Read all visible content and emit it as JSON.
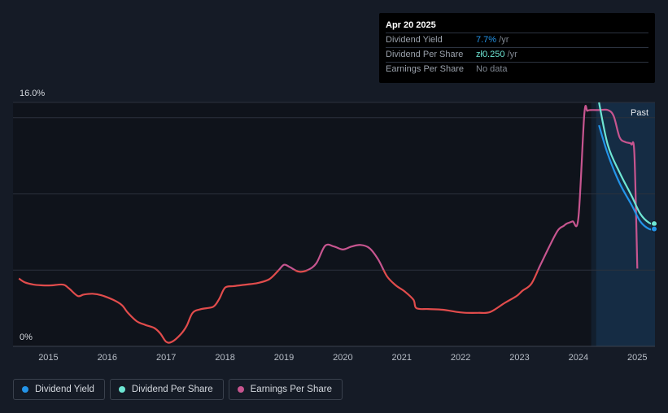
{
  "tooltip": {
    "date": "Apr 20 2025",
    "rows": [
      {
        "label": "Dividend Yield",
        "value": "7.7%",
        "unit": " /yr",
        "color": "#2394e8"
      },
      {
        "label": "Dividend Per Share",
        "value": "zł0.250",
        "unit": " /yr",
        "color": "#6ee6d4"
      },
      {
        "label": "Earnings Per Share",
        "value": "No data",
        "unit": "",
        "color": "#7f8690"
      }
    ]
  },
  "legend": [
    {
      "label": "Dividend Yield",
      "color": "#2394e8"
    },
    {
      "label": "Dividend Per Share",
      "color": "#6ee6d4"
    },
    {
      "label": "Earnings Per Share",
      "color": "#c7558f"
    }
  ],
  "chart_data": {
    "type": "line",
    "y_tick_labels": [
      "16.0%",
      "0%"
    ],
    "ylim": [
      0,
      16
    ],
    "xlim": [
      2014.4,
      2025.3
    ],
    "x_ticks": [
      2015,
      2016,
      2017,
      2018,
      2019,
      2020,
      2021,
      2022,
      2023,
      2024,
      2025
    ],
    "grid": true,
    "past_region": {
      "label": "Past",
      "start": 2024.3
    },
    "series": [
      {
        "name": "Earnings Per Share",
        "color": "#c7558f",
        "segment_colors": {
          "below": "#e14c4c",
          "above": "#c7558f",
          "threshold": 5.0
        },
        "x": [
          2014.5,
          2014.6,
          2014.75,
          2014.9,
          2015.05,
          2015.25,
          2015.35,
          2015.5,
          2015.6,
          2015.75,
          2015.9,
          2016.1,
          2016.25,
          2016.35,
          2016.5,
          2016.65,
          2016.8,
          2016.9,
          2017.0,
          2017.1,
          2017.25,
          2017.35,
          2017.45,
          2017.6,
          2017.8,
          2017.9,
          2018.0,
          2018.15,
          2018.35,
          2018.55,
          2018.75,
          2018.9,
          2019.0,
          2019.1,
          2019.25,
          2019.4,
          2019.55,
          2019.7,
          2019.85,
          2020.0,
          2020.15,
          2020.3,
          2020.45,
          2020.6,
          2020.75,
          2020.9,
          2021.05,
          2021.2,
          2021.25,
          2021.45,
          2021.7,
          2021.95,
          2022.1,
          2022.3,
          2022.5,
          2022.75,
          2022.95,
          2023.05,
          2023.2,
          2023.35,
          2023.5,
          2023.65,
          2023.75,
          2023.8,
          2023.9,
          2024.0,
          2024.1,
          2024.15,
          2024.2,
          2024.35,
          2024.5,
          2024.6,
          2024.7,
          2024.8,
          2024.85,
          2024.9,
          2024.95,
          2025.0
        ],
        "values": [
          4.45,
          4.2,
          4.05,
          4.0,
          4.0,
          4.05,
          3.8,
          3.3,
          3.4,
          3.45,
          3.35,
          3.05,
          2.7,
          2.2,
          1.65,
          1.4,
          1.2,
          0.85,
          0.3,
          0.3,
          0.8,
          1.35,
          2.2,
          2.45,
          2.6,
          3.1,
          3.85,
          3.95,
          4.05,
          4.15,
          4.4,
          4.95,
          5.35,
          5.2,
          4.9,
          5.0,
          5.45,
          6.6,
          6.55,
          6.35,
          6.55,
          6.65,
          6.45,
          5.7,
          4.6,
          4.0,
          3.6,
          3.05,
          2.5,
          2.45,
          2.4,
          2.25,
          2.2,
          2.2,
          2.25,
          2.85,
          3.3,
          3.65,
          4.1,
          5.3,
          6.5,
          7.6,
          7.9,
          8.05,
          8.2,
          8.45,
          15.2,
          15.45,
          15.5,
          15.5,
          15.5,
          15.1,
          13.7,
          13.4,
          13.35,
          13.25,
          12.6,
          5.1
        ]
      },
      {
        "name": "Dividend Per Share",
        "color": "#6ee6d4",
        "x": [
          2024.35,
          2024.5,
          2024.7,
          2024.9,
          2025.05,
          2025.2,
          2025.3
        ],
        "values": [
          16.0,
          13.2,
          11.4,
          9.9,
          8.7,
          8.1,
          8.05
        ]
      },
      {
        "name": "Dividend Yield",
        "color": "#2394e8",
        "x": [
          2024.35,
          2024.5,
          2024.7,
          2024.9,
          2025.05,
          2025.2,
          2025.3
        ],
        "values": [
          14.5,
          12.6,
          10.7,
          9.3,
          8.2,
          7.7,
          7.7
        ]
      }
    ]
  }
}
